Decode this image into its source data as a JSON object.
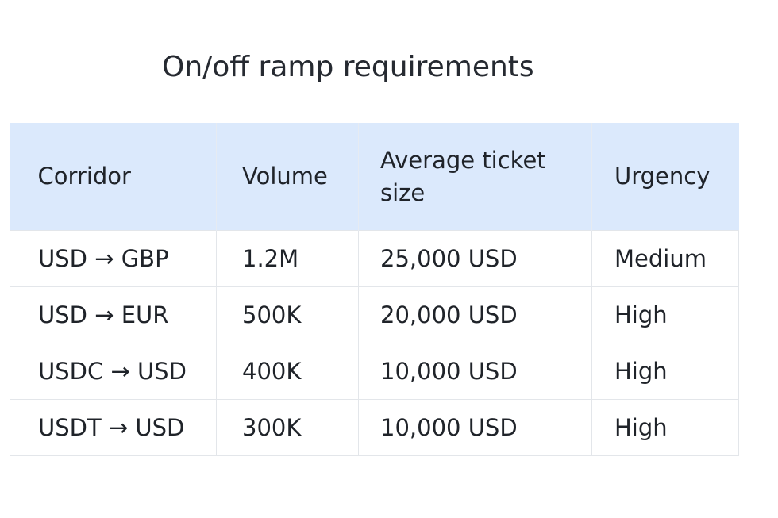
{
  "title": "On/off ramp requirements",
  "table": {
    "headers": [
      "Corridor",
      "Volume",
      "Average ticket size",
      "Urgency"
    ],
    "rows": [
      [
        "USD → GBP",
        "1.2M",
        "25,000 USD",
        "Medium"
      ],
      [
        "USD → EUR",
        "500K",
        "20,000 USD",
        "High"
      ],
      [
        "USDC → USD",
        "400K",
        "10,000 USD",
        "High"
      ],
      [
        "USDT → USD",
        "300K",
        "10,000 USD",
        "High"
      ]
    ]
  },
  "colors": {
    "header_background": "#dbe9fc",
    "grid_lines": "#e3e6ea",
    "text": "#1f2329"
  }
}
